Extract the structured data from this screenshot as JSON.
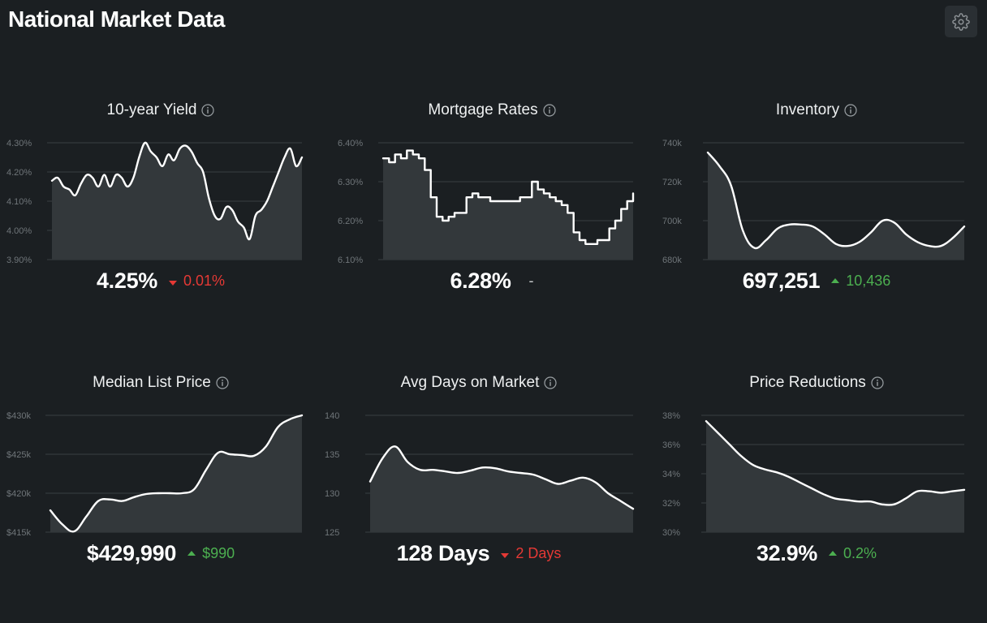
{
  "header": {
    "title": "National Market Data",
    "settings_icon": "gear-icon"
  },
  "colors": {
    "up": "#4caf50",
    "down": "#e53935",
    "line": "#ffffff",
    "fill": "#33383b",
    "grid": "#3a3f43"
  },
  "cards": [
    {
      "title": "10-year Yield",
      "value": "4.25%",
      "change": {
        "direction": "down",
        "text": "0.01%"
      },
      "chart_data": {
        "type": "line",
        "step": false,
        "y_ticks": [
          "4.30%",
          "4.20%",
          "4.10%",
          "4.00%",
          "3.90%"
        ],
        "ylim": [
          3.9,
          4.3
        ],
        "y": [
          4.17,
          4.18,
          4.15,
          4.14,
          4.12,
          4.16,
          4.19,
          4.18,
          4.15,
          4.19,
          4.15,
          4.19,
          4.18,
          4.15,
          4.18,
          4.25,
          4.3,
          4.27,
          4.25,
          4.22,
          4.26,
          4.24,
          4.28,
          4.29,
          4.27,
          4.23,
          4.2,
          4.11,
          4.05,
          4.04,
          4.08,
          4.07,
          4.03,
          4.01,
          3.97,
          4.05,
          4.07,
          4.1,
          4.15,
          4.2,
          4.25,
          4.28,
          4.22,
          4.25
        ]
      }
    },
    {
      "title": "Mortgage Rates",
      "value": "6.28%",
      "change": {
        "direction": "none",
        "text": "-"
      },
      "chart_data": {
        "type": "line",
        "step": true,
        "y_ticks": [
          "6.40%",
          "6.30%",
          "6.20%",
          "6.10%"
        ],
        "ylim": [
          6.1,
          6.4
        ],
        "y": [
          6.36,
          6.35,
          6.37,
          6.36,
          6.38,
          6.37,
          6.36,
          6.33,
          6.26,
          6.21,
          6.2,
          6.21,
          6.22,
          6.22,
          6.26,
          6.27,
          6.26,
          6.26,
          6.25,
          6.25,
          6.25,
          6.25,
          6.25,
          6.26,
          6.26,
          6.3,
          6.28,
          6.27,
          6.26,
          6.25,
          6.24,
          6.22,
          6.17,
          6.15,
          6.14,
          6.14,
          6.15,
          6.15,
          6.18,
          6.2,
          6.23,
          6.25,
          6.27
        ]
      }
    },
    {
      "title": "Inventory",
      "value": "697,251",
      "change": {
        "direction": "up",
        "text": "10,436"
      },
      "chart_data": {
        "type": "line",
        "step": false,
        "y_ticks": [
          "740k",
          "720k",
          "700k",
          "680k"
        ],
        "ylim": [
          680000,
          740000
        ],
        "y": [
          735000,
          728000,
          718000,
          695000,
          686000,
          690000,
          696000,
          698000,
          698000,
          697000,
          693000,
          688000,
          687000,
          689000,
          694000,
          700000,
          699000,
          693000,
          689000,
          687000,
          687000,
          691000,
          697000
        ]
      }
    },
    {
      "title": "Median List Price",
      "value": "$429,990",
      "change": {
        "direction": "up",
        "text": "$990"
      },
      "chart_data": {
        "type": "line",
        "step": false,
        "y_ticks": [
          "$430k",
          "$425k",
          "$420k",
          "$415k"
        ],
        "ylim": [
          415000,
          430000
        ],
        "y": [
          417800,
          416000,
          415100,
          417000,
          419000,
          419200,
          419000,
          419500,
          419900,
          420000,
          420000,
          420000,
          420500,
          423000,
          425200,
          425000,
          424900,
          424800,
          426000,
          428500,
          429500,
          430000
        ]
      }
    },
    {
      "title": "Avg Days on Market",
      "value": "128 Days",
      "change": {
        "direction": "down",
        "text": "2 Days"
      },
      "chart_data": {
        "type": "line",
        "step": false,
        "y_ticks": [
          "140",
          "135",
          "130",
          "125"
        ],
        "ylim": [
          125,
          140
        ],
        "y": [
          131.5,
          134.5,
          136,
          134,
          133,
          133,
          132.8,
          132.6,
          132.9,
          133.3,
          133.2,
          132.8,
          132.6,
          132.4,
          131.8,
          131.2,
          131.6,
          132,
          131.4,
          130,
          129,
          128
        ]
      }
    },
    {
      "title": "Price Reductions",
      "value": "32.9%",
      "change": {
        "direction": "up",
        "text": "0.2%"
      },
      "chart_data": {
        "type": "line",
        "step": false,
        "y_ticks": [
          "38%",
          "36%",
          "34%",
          "32%",
          "30%"
        ],
        "ylim": [
          30,
          38
        ],
        "y": [
          37.6,
          36.8,
          36,
          35.2,
          34.6,
          34.3,
          34.1,
          33.8,
          33.4,
          33,
          32.6,
          32.3,
          32.2,
          32.1,
          32.1,
          31.9,
          31.9,
          32.3,
          32.8,
          32.8,
          32.7,
          32.8,
          32.9
        ]
      }
    }
  ]
}
